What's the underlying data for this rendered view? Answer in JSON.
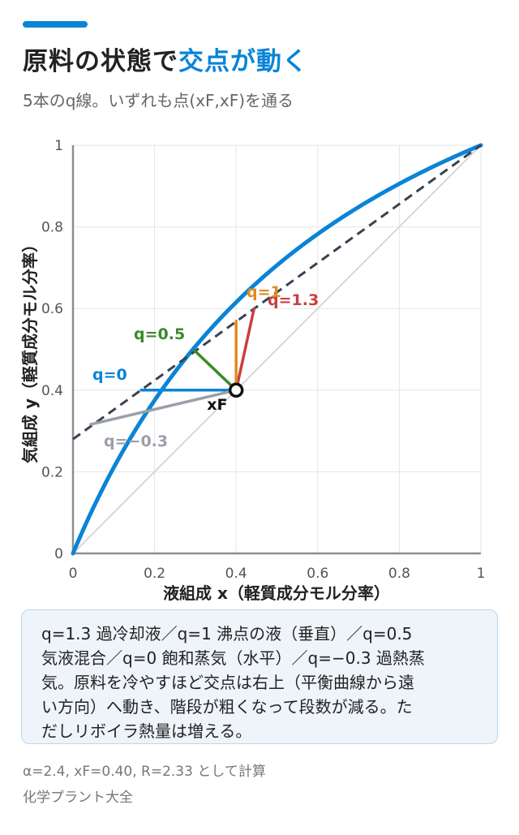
{
  "header": {
    "title_part1": "原料の状態で",
    "title_part2": "交点が動く",
    "subtitle": "5本のq線。いずれも点(xF,xF)を通る"
  },
  "chart_data": {
    "type": "line",
    "xlabel": "液組成 x（軽質成分モル分率）",
    "ylabel": "気組成 y（軽質成分モル分率）",
    "xlim": [
      0,
      1
    ],
    "ylim": [
      0,
      1
    ],
    "x_ticks": [
      "0",
      "0.2",
      "0.4",
      "0.6",
      "0.8",
      "1"
    ],
    "y_ticks": [
      "0",
      "0.2",
      "0.4",
      "0.6",
      "0.8",
      "1"
    ],
    "grid": true,
    "alpha": 2.4,
    "xF": 0.4,
    "R": 2.33,
    "feed_label": "xF",
    "series": [
      {
        "name": "equilibrium",
        "color": "#0a84d6",
        "role": "equilibrium curve y = αx/(1+(α−1)x)"
      },
      {
        "name": "diagonal",
        "color": "#cccccc",
        "points": [
          [
            0,
            0
          ],
          [
            1,
            1
          ]
        ]
      },
      {
        "name": "operating line",
        "color": "#3a4250",
        "style": "dashed",
        "points": [
          [
            0,
            0.28
          ],
          [
            1,
            1
          ]
        ]
      }
    ],
    "q_lines": [
      {
        "label": "q=1.3",
        "color": "#c94040",
        "end": [
          0.444,
          0.6
        ]
      },
      {
        "label": "q=1",
        "color": "#e08a1e",
        "end": [
          0.4,
          0.569
        ]
      },
      {
        "label": "q=0.5",
        "color": "#3a8a2a",
        "end": [
          0.298,
          0.497
        ]
      },
      {
        "label": "q=0",
        "color": "#0a84d6",
        "end": [
          0.167,
          0.4
        ]
      },
      {
        "label": "q=−0.3",
        "color": "#9aa0a8",
        "end": [
          0.043,
          0.316
        ]
      }
    ]
  },
  "note": {
    "lines": [
      "q=1.3 過冷却液／q=1 沸点の液（垂直）／q=0.5",
      "気液混合／q=0 飽和蒸気（水平）／q=−0.3 過熱蒸",
      "気。原料を冷やすほど交点は右上（平衡曲線から遠",
      "い方向）へ動き、階段が粗くなって段数が減る。た",
      "だしリボイラ熱量は増える。"
    ]
  },
  "footer": {
    "calc_note": "α=2.4, xF=0.40, R=2.33 として計算",
    "source": "化学プラント大全"
  }
}
